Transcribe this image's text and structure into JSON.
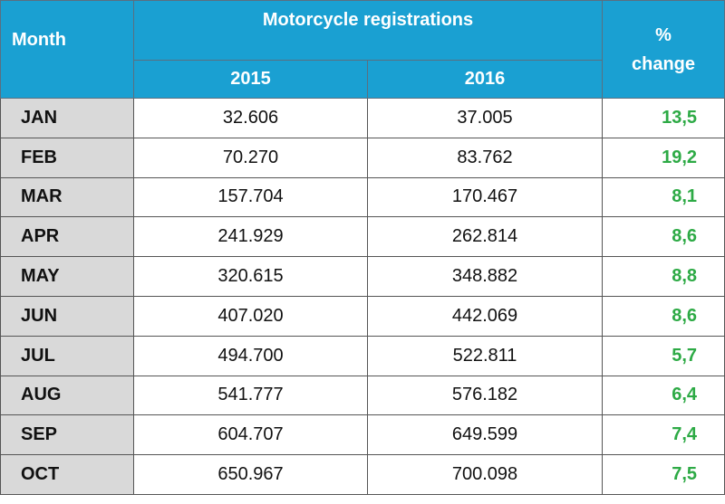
{
  "table": {
    "header": {
      "month": "Month",
      "group": "Motorcycle registrations",
      "years": [
        "2015",
        "2016"
      ],
      "change": "% change"
    },
    "rows": [
      [
        "JAN",
        "32.606",
        "37.005",
        "13,5"
      ],
      [
        "FEB",
        "70.270",
        "83.762",
        "19,2"
      ],
      [
        "MAR",
        "157.704",
        "170.467",
        "8,1"
      ],
      [
        "APR",
        "241.929",
        "262.814",
        "8,6"
      ],
      [
        "MAY",
        "320.615",
        "348.882",
        "8,8"
      ],
      [
        "JUN",
        "407.020",
        "442.069",
        "8,6"
      ],
      [
        "JUL",
        "494.700",
        "522.811",
        "5,7"
      ],
      [
        "AUG",
        "541.777",
        "576.182",
        "6,4"
      ],
      [
        "SEP",
        "604.707",
        "649.599",
        "7,4"
      ],
      [
        "OCT",
        "650.967",
        "700.098",
        "7,5"
      ]
    ]
  }
}
